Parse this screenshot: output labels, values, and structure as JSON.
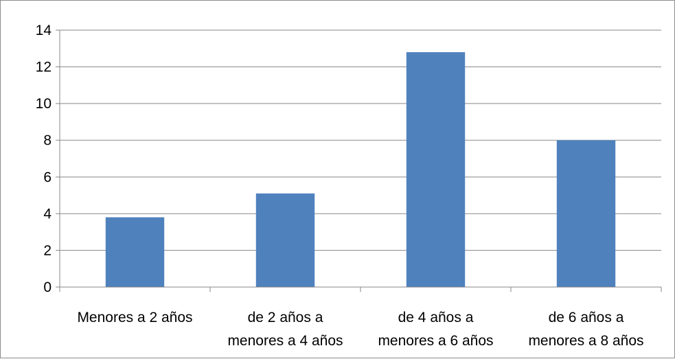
{
  "chart_data": {
    "type": "bar",
    "categories": [
      [
        "Menores a 2 años"
      ],
      [
        "de 2 años a",
        "menores a 4 años"
      ],
      [
        "de 4 años a",
        "menores a 6 años"
      ],
      [
        "de 6 años a",
        "menores a 8 años"
      ]
    ],
    "values": [
      3.8,
      5.1,
      12.8,
      8.0
    ],
    "ylim": [
      0,
      14
    ],
    "yticks": [
      "0",
      "2",
      "4",
      "6",
      "8",
      "10",
      "12",
      "14"
    ],
    "grid": true,
    "legend": "none",
    "colors": {
      "bar": "#4f81bd",
      "grid": "#878787",
      "axis": "#878787"
    }
  }
}
